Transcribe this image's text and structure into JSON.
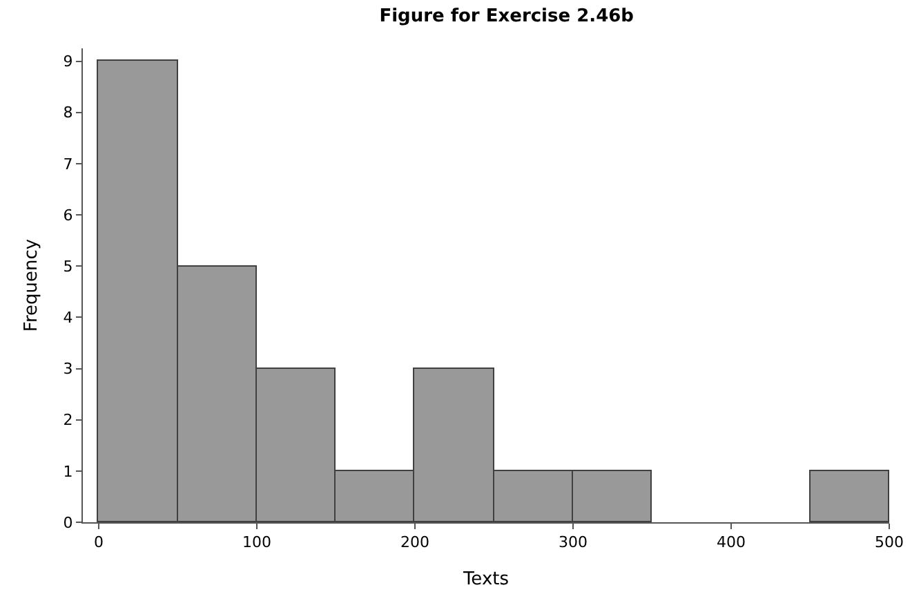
{
  "chart_data": {
    "type": "histogram",
    "title": "Figure for Exercise 2.46b",
    "xlabel": "Texts",
    "ylabel": "Frequency",
    "bins": [
      0,
      50,
      100,
      150,
      200,
      250,
      300,
      350,
      400,
      450,
      500
    ],
    "values": [
      9,
      5,
      3,
      1,
      3,
      1,
      1,
      0,
      0,
      1
    ],
    "color": "#999999",
    "xlim": [
      -10,
      500
    ],
    "xticks": [
      0,
      100,
      200,
      300,
      400,
      500
    ],
    "ylim": [
      0,
      9.25
    ],
    "yticks": [
      0,
      1,
      2,
      3,
      4,
      5,
      6,
      7,
      8,
      9
    ]
  }
}
